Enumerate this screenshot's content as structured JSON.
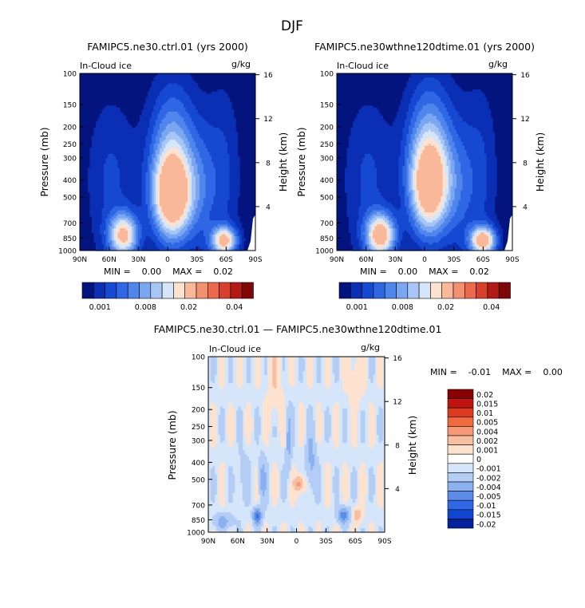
{
  "title": "DJF",
  "panel_left": {
    "title": "FAMIPC5.ne30.ctrl.01 (yrs 2000)",
    "field": "In-Cloud ice",
    "units": "g/kg",
    "ylabel": "Pressure (mb)",
    "ylabel_right": "Height (km)",
    "stats": "MIN =    0.00    MAX =    0.02"
  },
  "panel_right": {
    "title": "FAMIPC5.ne30wthne120dtime.01 (yrs 2000)",
    "field": "In-Cloud ice",
    "units": "g/kg",
    "ylabel": "Pressure (mb)",
    "ylabel_right": "Height (km)",
    "stats": "MIN =    0.00    MAX =    0.02"
  },
  "panel_diff": {
    "title": "FAMIPC5.ne30.ctrl.01 — FAMIPC5.ne30wthne120dtime.01",
    "field": "In-Cloud ice",
    "units": "g/kg",
    "ylabel": "Pressure (mb)",
    "ylabel_right": "Height (km)",
    "stats": "MIN =    -0.01    MAX =    0.00"
  },
  "chart_data": [
    {
      "type": "heatmap",
      "name": "left",
      "x_ticks": [
        "90N",
        "60N",
        "30N",
        "0",
        "30S",
        "60S",
        "90S"
      ],
      "y_ticks": [
        "100",
        "150",
        "200",
        "250",
        "300",
        "400",
        "500",
        "700",
        "850",
        "1000"
      ],
      "y_right_ticks": [
        "16",
        "12",
        "8",
        "4"
      ],
      "colorbar_labels": [
        "0.001",
        "0.008",
        "0.02",
        "0.04"
      ],
      "colors": [
        "#04147e",
        "#0a2fb4",
        "#1549d2",
        "#2f67e4",
        "#4f86ec",
        "#7ba6f1",
        "#a8c6f5",
        "#d5e6fa",
        "#fde3cf",
        "#f9b89a",
        "#f2906f",
        "#ec6a4b",
        "#d9402b",
        "#b31a15",
        "#7f0707"
      ],
      "blobs": [
        {
          "lat": -5,
          "p": 500,
          "w": 20,
          "h": 0.55,
          "v": 9
        },
        {
          "lat": -5,
          "p": 280,
          "w": 24,
          "h": 0.9,
          "v": 5
        },
        {
          "lat": 45,
          "p": 820,
          "w": 15,
          "h": 0.28,
          "v": 8
        },
        {
          "lat": 58,
          "p": 400,
          "w": 26,
          "h": 1.1,
          "v": 2
        },
        {
          "lat": -58,
          "p": 880,
          "w": 13,
          "h": 0.18,
          "v": 8
        },
        {
          "lat": -57,
          "p": 380,
          "w": 18,
          "h": 1.2,
          "v": 2
        },
        {
          "lat": -35,
          "p": 450,
          "w": 16,
          "h": 0.9,
          "v": 2
        }
      ]
    },
    {
      "type": "heatmap",
      "name": "right",
      "x_ticks": [
        "90N",
        "60N",
        "30N",
        "0",
        "30S",
        "60S",
        "90S"
      ],
      "y_ticks": [
        "100",
        "150",
        "200",
        "250",
        "300",
        "400",
        "500",
        "700",
        "850",
        "1000"
      ],
      "y_right_ticks": [
        "16",
        "12",
        "8",
        "4"
      ],
      "colorbar_labels": [
        "0.001",
        "0.008",
        "0.02",
        "0.04"
      ],
      "blobs": [
        {
          "lat": -5,
          "p": 450,
          "w": 20,
          "h": 0.6,
          "v": 8
        },
        {
          "lat": -5,
          "p": 260,
          "w": 24,
          "h": 0.9,
          "v": 5
        },
        {
          "lat": 45,
          "p": 820,
          "w": 15,
          "h": 0.28,
          "v": 9
        },
        {
          "lat": 58,
          "p": 400,
          "w": 26,
          "h": 1.1,
          "v": 2
        },
        {
          "lat": -60,
          "p": 880,
          "w": 13,
          "h": 0.18,
          "v": 9
        },
        {
          "lat": -57,
          "p": 380,
          "w": 18,
          "h": 1.2,
          "v": 2
        },
        {
          "lat": -35,
          "p": 450,
          "w": 16,
          "h": 0.9,
          "v": 2
        }
      ]
    },
    {
      "type": "heatmap",
      "name": "difference",
      "x_ticks": [
        "90N",
        "60N",
        "30N",
        "0",
        "30S",
        "60S",
        "90S"
      ],
      "y_ticks": [
        "100",
        "150",
        "200",
        "250",
        "300",
        "400",
        "500",
        "700",
        "850",
        "1000"
      ],
      "y_right_ticks": [
        "16",
        "12",
        "8",
        "4"
      ],
      "colorbar_labels": [
        "0.02",
        "0.015",
        "0.01",
        "0.005",
        "0.004",
        "0.002",
        "0.001",
        "0",
        "-0.001",
        "-0.002",
        "-0.004",
        "-0.005",
        "-0.01",
        "-0.015",
        "-0.02"
      ],
      "colors": [
        "#8b0000",
        "#c1140e",
        "#dc3a21",
        "#ef6b3f",
        "#f59873",
        "#f8bea0",
        "#fde3cf",
        "#ffffff",
        "#d5e6fa",
        "#b3cdf5",
        "#8bb1f0",
        "#5b8de8",
        "#2f67e4",
        "#1046cf",
        "#03209d"
      ],
      "spots": [
        {
          "lat": -3,
          "p": 530,
          "w": 5,
          "h": 0.12,
          "v": 0.003
        },
        {
          "lat": -62,
          "p": 800,
          "w": 5,
          "h": 0.1,
          "v": 0.002
        },
        {
          "lat": 22,
          "p": 140,
          "w": 8,
          "h": 0.5,
          "v": 0.001
        },
        {
          "lat": -60,
          "p": 130,
          "w": 8,
          "h": 0.35,
          "v": 0.001
        },
        {
          "lat": 40,
          "p": 810,
          "w": 4,
          "h": 0.1,
          "v": -0.005
        },
        {
          "lat": 35,
          "p": 500,
          "w": 4,
          "h": 0.3,
          "v": -0.002
        },
        {
          "lat": -15,
          "p": 400,
          "w": 5,
          "h": 0.4,
          "v": -0.002
        },
        {
          "lat": -48,
          "p": 800,
          "w": 6,
          "h": 0.1,
          "v": -0.004
        },
        {
          "lat": 75,
          "p": 870,
          "w": 10,
          "h": 0.1,
          "v": -0.002
        },
        {
          "lat": 55,
          "p": 480,
          "w": 6,
          "h": 0.35,
          "v": -0.001
        },
        {
          "lat": 8,
          "p": 300,
          "w": 3,
          "h": 0.4,
          "v": -0.002
        }
      ]
    }
  ]
}
